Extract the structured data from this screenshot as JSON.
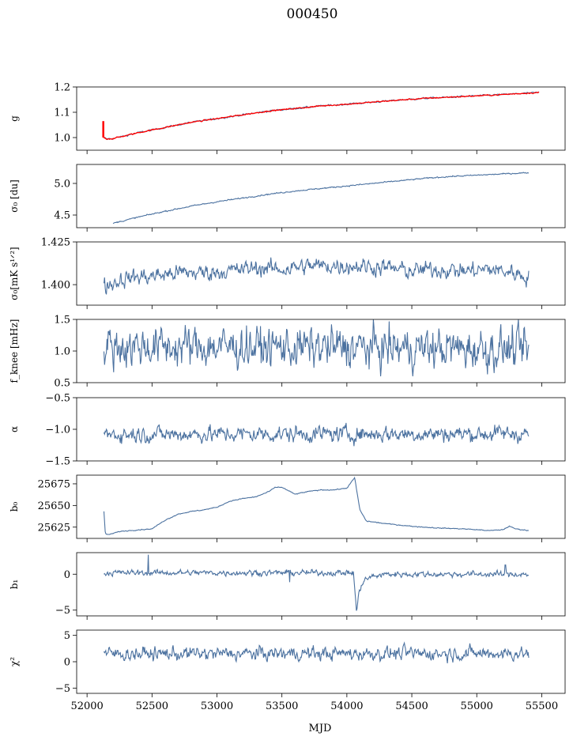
{
  "figure": {
    "title": "000450",
    "xlabel": "MJD"
  },
  "colors": {
    "series": "#4c72a0",
    "overlay": "#ff0000",
    "axis": "#000000"
  },
  "chart_data": [
    {
      "type": "line",
      "id": "g",
      "ylabel": "g",
      "xlim": [
        51920,
        55680
      ],
      "ylim": [
        0.95,
        1.2
      ],
      "yticks": [
        1.0,
        1.1,
        1.2
      ],
      "ytick_labels": [
        "1.0",
        "1.1",
        "1.2"
      ],
      "xtick_labels_visible": false,
      "x": [
        52120,
        52130,
        52150,
        52200,
        52300,
        52400,
        52600,
        52800,
        53000,
        53200,
        53400,
        53600,
        53800,
        54000,
        54200,
        54400,
        54600,
        54800,
        55000,
        55200,
        55400,
        55480
      ],
      "values": [
        1.01,
        1.0,
        0.995,
        0.996,
        1.008,
        1.02,
        1.04,
        1.06,
        1.075,
        1.09,
        1.105,
        1.115,
        1.125,
        1.132,
        1.14,
        1.148,
        1.155,
        1.16,
        1.165,
        1.17,
        1.176,
        1.178
      ],
      "noise": 0.002,
      "overlay": {
        "name": "red",
        "note": "spike near start",
        "spike_x": 52125,
        "spike_range": [
          1.0,
          1.065
        ]
      }
    },
    {
      "type": "line",
      "id": "sigma0",
      "ylabel": "σ₀ [du]",
      "xlim": [
        51920,
        55680
      ],
      "ylim": [
        4.3,
        5.3
      ],
      "yticks": [
        4.5,
        5.0
      ],
      "ytick_labels": [
        "4.5",
        "5.0"
      ],
      "xtick_labels_visible": false,
      "x": [
        52200,
        52400,
        52600,
        52800,
        53000,
        53200,
        53400,
        53600,
        53800,
        54000,
        54200,
        54400,
        54600,
        54800,
        55000,
        55200,
        55400
      ],
      "values": [
        4.37,
        4.47,
        4.56,
        4.64,
        4.71,
        4.77,
        4.83,
        4.88,
        4.92,
        4.96,
        5.0,
        5.04,
        5.08,
        5.11,
        5.13,
        5.15,
        5.17
      ],
      "noise": 0.006
    },
    {
      "type": "line",
      "id": "sigma0_mk",
      "ylabel": "σ₀[mK s¹ᐟ²]",
      "xlim": [
        51920,
        55680
      ],
      "ylim": [
        1.388,
        1.425
      ],
      "yticks": [
        1.4,
        1.425
      ],
      "ytick_labels": [
        "1.400",
        "1.425"
      ],
      "xtick_labels_visible": false,
      "x": [
        52130,
        52300,
        52500,
        52700,
        52900,
        53100,
        53300,
        53500,
        53700,
        53900,
        54100,
        54300,
        54500,
        54700,
        54900,
        55100,
        55300,
        55400
      ],
      "values": [
        1.399,
        1.404,
        1.405,
        1.407,
        1.407,
        1.408,
        1.41,
        1.409,
        1.411,
        1.411,
        1.411,
        1.41,
        1.408,
        1.409,
        1.408,
        1.409,
        1.407,
        1.404
      ],
      "noise": 0.003
    },
    {
      "type": "line",
      "id": "fknee",
      "ylabel": "f_knee [mHz]",
      "xlim": [
        51920,
        55680
      ],
      "ylim": [
        0.5,
        1.5
      ],
      "yticks": [
        0.5,
        1.0,
        1.5
      ],
      "ytick_labels": [
        "0.5",
        "1.0",
        "1.5"
      ],
      "xtick_labels_visible": false,
      "x": [
        52130,
        55400
      ],
      "values": [
        1.08,
        1.03
      ],
      "noise": 0.2,
      "clip": [
        0.6,
        1.5
      ]
    },
    {
      "type": "line",
      "id": "alpha",
      "ylabel": "α",
      "xlim": [
        51920,
        55680
      ],
      "ylim": [
        -1.5,
        -0.5
      ],
      "yticks": [
        -1.5,
        -1.0,
        -0.5
      ],
      "ytick_labels": [
        "−1.5",
        "−1.0",
        "−0.5"
      ],
      "xtick_labels_visible": false,
      "x": [
        52130,
        55400
      ],
      "values": [
        -1.08,
        -1.07
      ],
      "noise": 0.08
    },
    {
      "type": "line",
      "id": "b0",
      "ylabel": "b₀",
      "xlim": [
        51920,
        55680
      ],
      "ylim": [
        25612,
        25685
      ],
      "yticks": [
        25625,
        25650,
        25675
      ],
      "ytick_labels": [
        "25625",
        "25650",
        "25675"
      ],
      "xtick_labels_visible": false,
      "x": [
        52130,
        52140,
        52160,
        52250,
        52400,
        52500,
        52600,
        52700,
        52800,
        52900,
        53000,
        53100,
        53200,
        53300,
        53400,
        53450,
        53500,
        53600,
        53700,
        53800,
        53900,
        54000,
        54060,
        54100,
        54150,
        54300,
        54500,
        54700,
        54900,
        55100,
        55200,
        55250,
        55300,
        55400
      ],
      "values": [
        25643,
        25618,
        25616,
        25620,
        25622,
        25623,
        25633,
        25640,
        25643,
        25645,
        25648,
        25655,
        25658,
        25660,
        25666,
        25671,
        25671,
        25663,
        25666,
        25668,
        25668,
        25670,
        25682,
        25645,
        25632,
        25629,
        25626,
        25624,
        25623,
        25621,
        25622,
        25626,
        25623,
        25621
      ],
      "noise": 0.3
    },
    {
      "type": "line",
      "id": "b1",
      "ylabel": "b₁",
      "xlim": [
        51920,
        55680
      ],
      "ylim": [
        -5.8,
        3.0
      ],
      "yticks": [
        -5,
        0
      ],
      "ytick_labels": [
        "−5",
        "0"
      ],
      "xtick_labels_visible": false,
      "x": [
        52130,
        54050,
        54075,
        54090,
        54110,
        54140,
        54200,
        54300,
        55400
      ],
      "values": [
        0.2,
        0.2,
        -5.3,
        -3.0,
        -1.5,
        -0.8,
        -0.3,
        0.0,
        0.0
      ],
      "noise": 0.25,
      "spikes": [
        {
          "x": 52470,
          "y": 2.7
        },
        {
          "x": 53560,
          "y": -1.1
        },
        {
          "x": 55220,
          "y": 1.3
        }
      ]
    },
    {
      "type": "line",
      "id": "chi2",
      "ylabel": "χ²",
      "xlim": [
        51920,
        55680
      ],
      "ylim": [
        -6,
        6
      ],
      "yticks": [
        -5,
        0,
        5
      ],
      "ytick_labels": [
        "−5",
        "0",
        "5"
      ],
      "xticks": [
        52000,
        52500,
        53000,
        53500,
        54000,
        54500,
        55000,
        55500
      ],
      "xtick_labels": [
        "52000",
        "52500",
        "53000",
        "53500",
        "54000",
        "54500",
        "55000",
        "55500"
      ],
      "xtick_labels_visible": true,
      "x": [
        52130,
        55400
      ],
      "values": [
        1.5,
        1.6
      ],
      "noise": 0.8
    }
  ]
}
